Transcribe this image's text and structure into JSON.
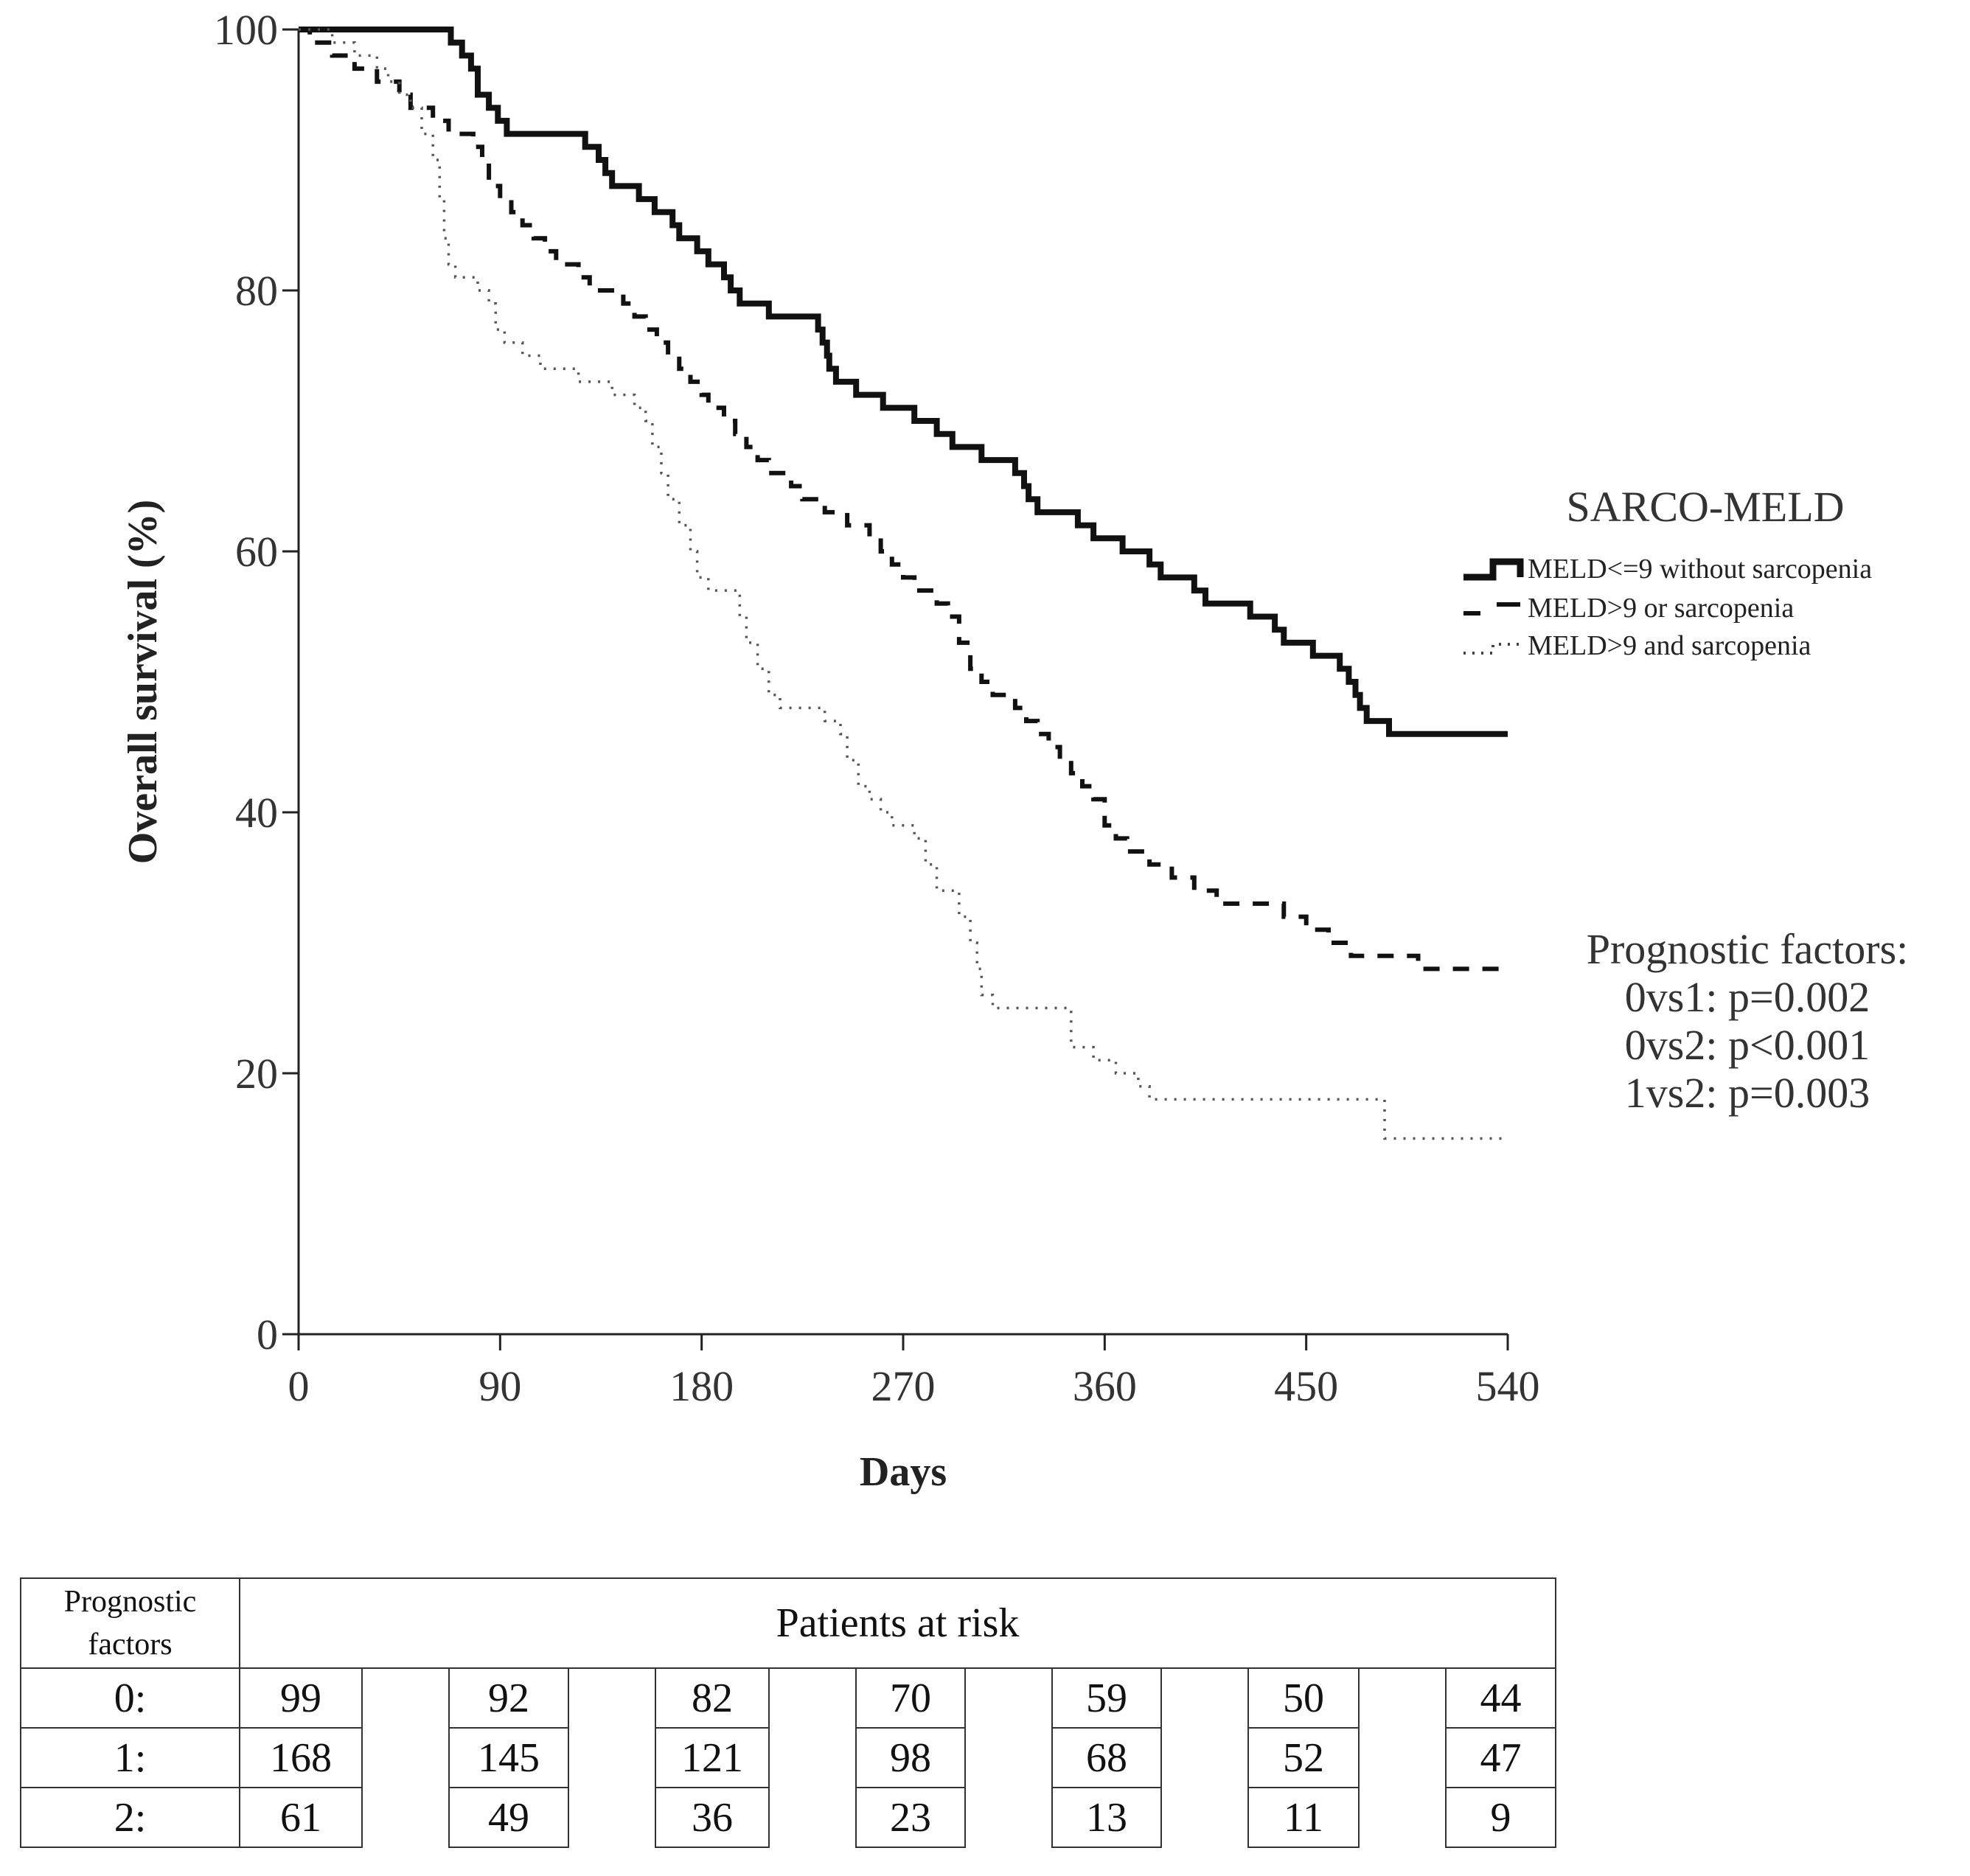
{
  "chart_data": {
    "type": "line",
    "subtype": "kaplan-meier",
    "xlabel": "Days",
    "ylabel": "Overall survival (%)",
    "xlim": [
      0,
      540
    ],
    "ylim": [
      0,
      100
    ],
    "x_ticks": [
      0,
      90,
      180,
      270,
      360,
      450,
      540
    ],
    "y_ticks": [
      0,
      20,
      40,
      60,
      80,
      100
    ],
    "legend_title": "SARCO-MELD",
    "legend_position": "right",
    "series": [
      {
        "name": "MELD<=9 without sarcopenia",
        "style": "solid",
        "steps": [
          [
            0,
            100
          ],
          [
            60,
            100
          ],
          [
            68,
            99
          ],
          [
            73,
            98
          ],
          [
            77,
            97
          ],
          [
            80,
            95
          ],
          [
            85,
            94
          ],
          [
            89,
            93
          ],
          [
            93,
            92
          ],
          [
            105,
            92
          ],
          [
            122,
            92
          ],
          [
            128,
            91
          ],
          [
            134,
            90
          ],
          [
            137,
            89
          ],
          [
            140,
            88
          ],
          [
            152,
            87
          ],
          [
            159,
            86
          ],
          [
            167,
            85
          ],
          [
            170,
            84
          ],
          [
            178,
            83
          ],
          [
            183,
            82
          ],
          [
            190,
            81
          ],
          [
            193,
            80
          ],
          [
            197,
            79
          ],
          [
            209,
            79
          ],
          [
            210,
            78
          ],
          [
            227,
            78
          ],
          [
            232,
            77
          ],
          [
            234,
            76
          ],
          [
            236,
            75
          ],
          [
            237,
            74
          ],
          [
            240,
            73
          ],
          [
            248,
            73
          ],
          [
            249,
            72
          ],
          [
            259,
            72
          ],
          [
            261,
            71
          ],
          [
            272,
            71
          ],
          [
            275,
            70
          ],
          [
            284,
            70
          ],
          [
            285,
            69
          ],
          [
            292,
            68
          ],
          [
            303,
            68
          ],
          [
            305,
            67
          ],
          [
            315,
            67
          ],
          [
            320,
            66
          ],
          [
            324,
            65
          ],
          [
            326,
            64
          ],
          [
            330,
            63
          ],
          [
            339,
            63
          ],
          [
            346,
            63
          ],
          [
            348,
            62
          ],
          [
            355,
            61
          ],
          [
            366,
            61
          ],
          [
            368,
            60
          ],
          [
            377,
            60
          ],
          [
            380,
            59
          ],
          [
            385,
            58
          ],
          [
            396,
            58
          ],
          [
            400,
            57
          ],
          [
            405,
            56
          ],
          [
            418,
            56
          ],
          [
            425,
            55
          ],
          [
            432,
            55
          ],
          [
            436,
            54
          ],
          [
            440,
            53
          ],
          [
            451,
            53
          ],
          [
            453,
            52
          ],
          [
            461,
            52
          ],
          [
            465,
            51
          ],
          [
            469,
            50
          ],
          [
            472,
            49
          ],
          [
            474,
            48
          ],
          [
            477,
            47
          ],
          [
            486,
            47
          ],
          [
            487,
            46
          ],
          [
            513,
            46
          ],
          [
            540,
            46
          ]
        ]
      },
      {
        "name": "MELD>9 or sarcopenia",
        "style": "dashed",
        "steps": [
          [
            0,
            100
          ],
          [
            5,
            99
          ],
          [
            15,
            98
          ],
          [
            25,
            97
          ],
          [
            35,
            96
          ],
          [
            45,
            95
          ],
          [
            50,
            94
          ],
          [
            60,
            93
          ],
          [
            67,
            92
          ],
          [
            72,
            92
          ],
          [
            78,
            91
          ],
          [
            82,
            90
          ],
          [
            85,
            88
          ],
          [
            90,
            87
          ],
          [
            95,
            86
          ],
          [
            100,
            85
          ],
          [
            105,
            84
          ],
          [
            110,
            83
          ],
          [
            115,
            82
          ],
          [
            125,
            81
          ],
          [
            130,
            80
          ],
          [
            140,
            80
          ],
          [
            145,
            79
          ],
          [
            150,
            78
          ],
          [
            155,
            77
          ],
          [
            160,
            76
          ],
          [
            165,
            75
          ],
          [
            170,
            74
          ],
          [
            175,
            73
          ],
          [
            180,
            72
          ],
          [
            183,
            71
          ],
          [
            190,
            70
          ],
          [
            195,
            69
          ],
          [
            200,
            68
          ],
          [
            205,
            67
          ],
          [
            210,
            66
          ],
          [
            220,
            65
          ],
          [
            225,
            64
          ],
          [
            235,
            63
          ],
          [
            245,
            62
          ],
          [
            255,
            61
          ],
          [
            260,
            60
          ],
          [
            265,
            59
          ],
          [
            270,
            58
          ],
          [
            275,
            57
          ],
          [
            285,
            56
          ],
          [
            290,
            55
          ],
          [
            295,
            53
          ],
          [
            300,
            51
          ],
          [
            305,
            50
          ],
          [
            310,
            49
          ],
          [
            320,
            48
          ],
          [
            325,
            47
          ],
          [
            330,
            46
          ],
          [
            335,
            45
          ],
          [
            340,
            44
          ],
          [
            345,
            43
          ],
          [
            350,
            42
          ],
          [
            355,
            41
          ],
          [
            360,
            39
          ],
          [
            365,
            38
          ],
          [
            370,
            37
          ],
          [
            380,
            36
          ],
          [
            390,
            35
          ],
          [
            400,
            34
          ],
          [
            410,
            33
          ],
          [
            430,
            33
          ],
          [
            440,
            32
          ],
          [
            450,
            31
          ],
          [
            460,
            30
          ],
          [
            470,
            29
          ],
          [
            490,
            29
          ],
          [
            500,
            28
          ],
          [
            530,
            28
          ],
          [
            540,
            28
          ]
        ]
      },
      {
        "name": "MELD>9 and sarcopenia",
        "style": "dotted",
        "steps": [
          [
            0,
            100
          ],
          [
            15,
            99
          ],
          [
            25,
            98
          ],
          [
            35,
            97
          ],
          [
            40,
            96
          ],
          [
            45,
            95
          ],
          [
            50,
            94
          ],
          [
            55,
            92
          ],
          [
            60,
            90
          ],
          [
            63,
            87
          ],
          [
            65,
            84
          ],
          [
            67,
            82
          ],
          [
            70,
            81
          ],
          [
            78,
            81
          ],
          [
            80,
            80
          ],
          [
            85,
            79
          ],
          [
            88,
            77
          ],
          [
            92,
            76
          ],
          [
            100,
            75
          ],
          [
            108,
            74
          ],
          [
            122,
            74
          ],
          [
            125,
            73
          ],
          [
            135,
            73
          ],
          [
            140,
            72
          ],
          [
            150,
            71
          ],
          [
            155,
            70
          ],
          [
            158,
            68
          ],
          [
            162,
            66
          ],
          [
            165,
            64
          ],
          [
            170,
            62
          ],
          [
            175,
            60
          ],
          [
            178,
            58
          ],
          [
            183,
            57
          ],
          [
            195,
            57
          ],
          [
            197,
            55
          ],
          [
            200,
            53
          ],
          [
            205,
            51
          ],
          [
            210,
            49
          ],
          [
            215,
            48
          ],
          [
            230,
            48
          ],
          [
            235,
            47
          ],
          [
            242,
            46
          ],
          [
            245,
            44
          ],
          [
            250,
            42
          ],
          [
            255,
            41
          ],
          [
            260,
            40
          ],
          [
            265,
            39
          ],
          [
            275,
            38
          ],
          [
            280,
            36
          ],
          [
            285,
            34
          ],
          [
            295,
            32
          ],
          [
            300,
            30
          ],
          [
            303,
            28
          ],
          [
            305,
            26
          ],
          [
            310,
            25
          ],
          [
            340,
            25
          ],
          [
            345,
            22
          ],
          [
            355,
            21
          ],
          [
            365,
            20
          ],
          [
            375,
            19
          ],
          [
            380,
            18
          ],
          [
            420,
            18
          ],
          [
            480,
            18
          ],
          [
            485,
            15
          ],
          [
            540,
            15
          ]
        ]
      }
    ],
    "annotations": {
      "title": "Prognostic factors:",
      "lines": [
        "0vs1: p=0.002",
        "0vs2: p<0.001",
        "1vs2: p=0.003"
      ]
    }
  },
  "risk_table": {
    "header_label_line1": "Prognostic",
    "header_label_line2": "factors",
    "header_title": "Patients at risk",
    "rows": [
      {
        "label": "0:",
        "values": [
          "99",
          "92",
          "82",
          "70",
          "59",
          "50",
          "44"
        ]
      },
      {
        "label": "1:",
        "values": [
          "168",
          "145",
          "121",
          "98",
          "68",
          "52",
          "47"
        ]
      },
      {
        "label": "2:",
        "values": [
          "61",
          "49",
          "36",
          "23",
          "13",
          "11",
          "9"
        ]
      }
    ]
  }
}
